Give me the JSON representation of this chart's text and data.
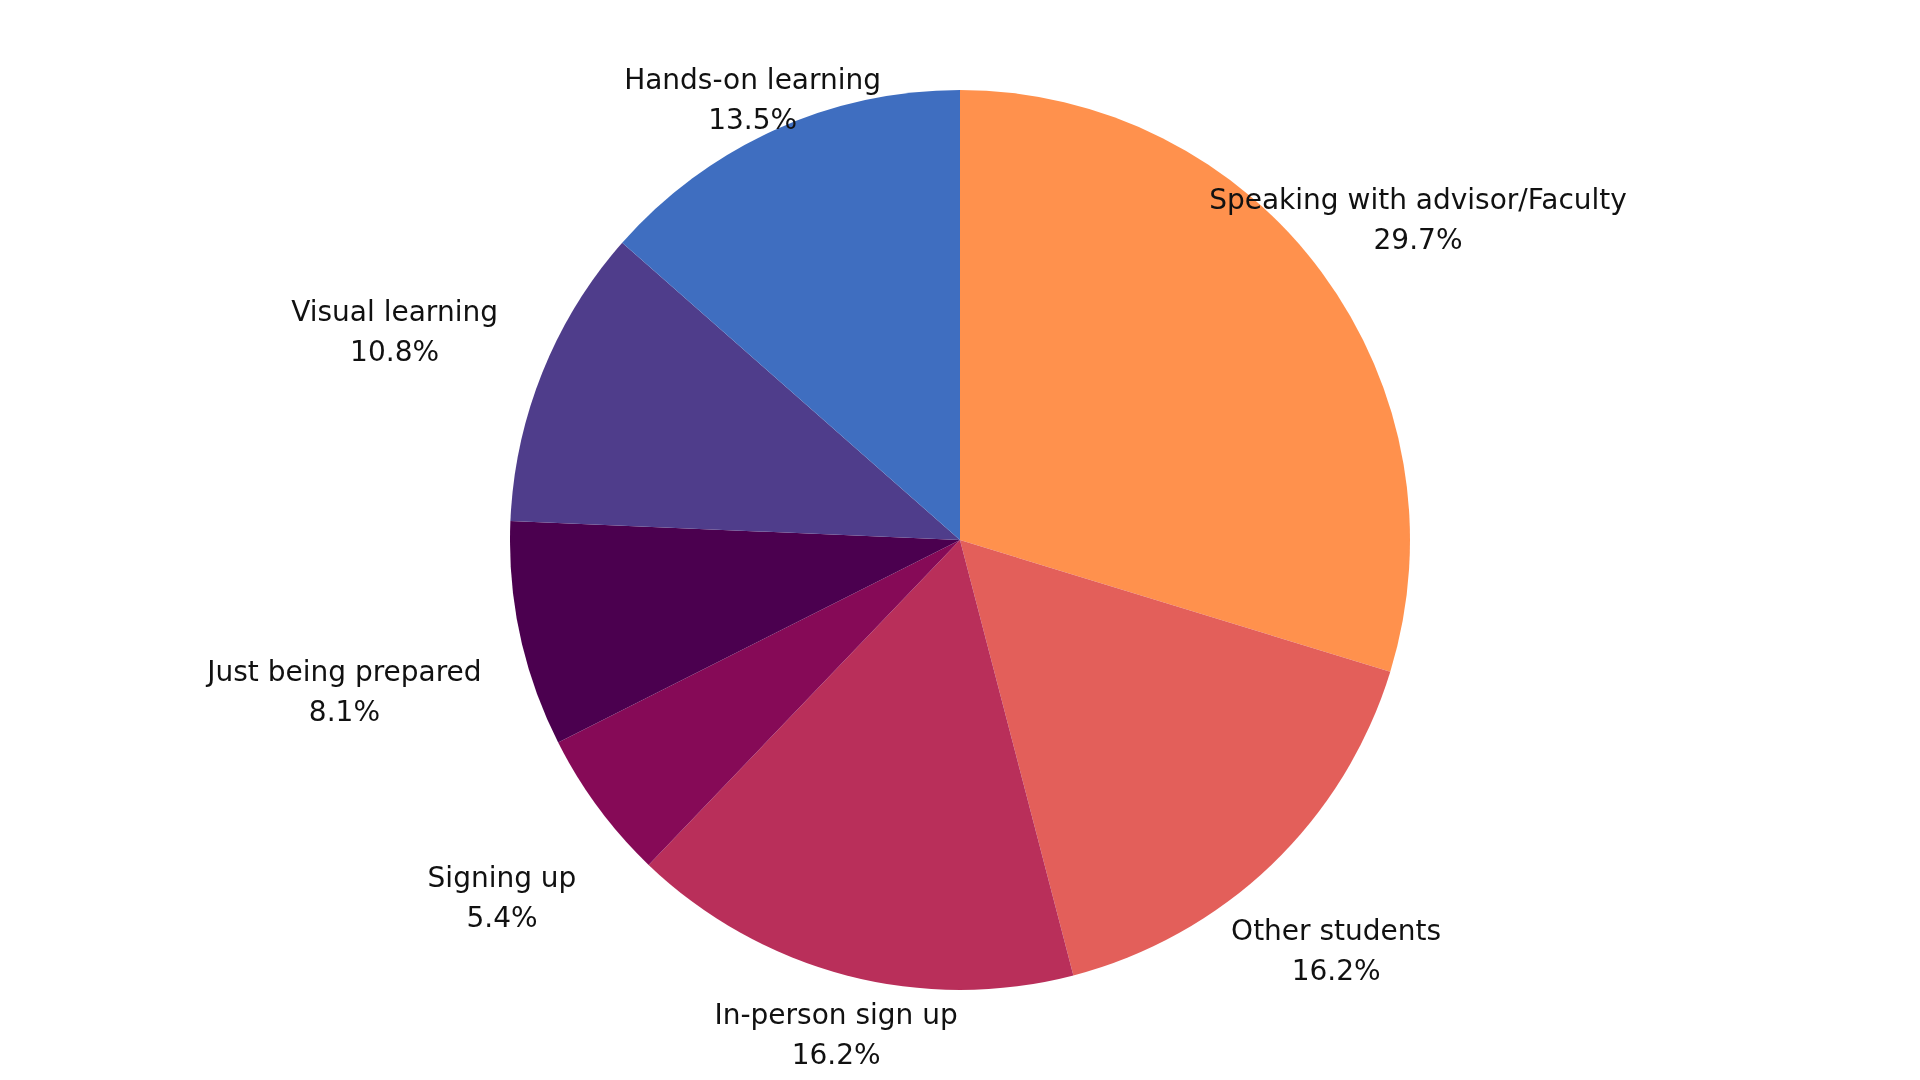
{
  "chart_data": {
    "type": "pie",
    "categories": [
      "Speaking with advisor/Faculty",
      "Other students",
      "In-person sign up",
      "Signing up",
      "Just being prepared",
      "Visual learning",
      "Hands-on learning"
    ],
    "values": [
      29.7,
      16.2,
      16.2,
      5.4,
      8.1,
      10.8,
      13.5
    ],
    "value_labels": [
      "29.7%",
      "16.2%",
      "16.2%",
      "5.4%",
      "8.1%",
      "10.8%",
      "13.5%"
    ],
    "colors": [
      "#ff914d",
      "#e35f5a",
      "#b92f5a",
      "#860a57",
      "#4b004f",
      "#4f3d8b",
      "#3f6ec0"
    ]
  }
}
